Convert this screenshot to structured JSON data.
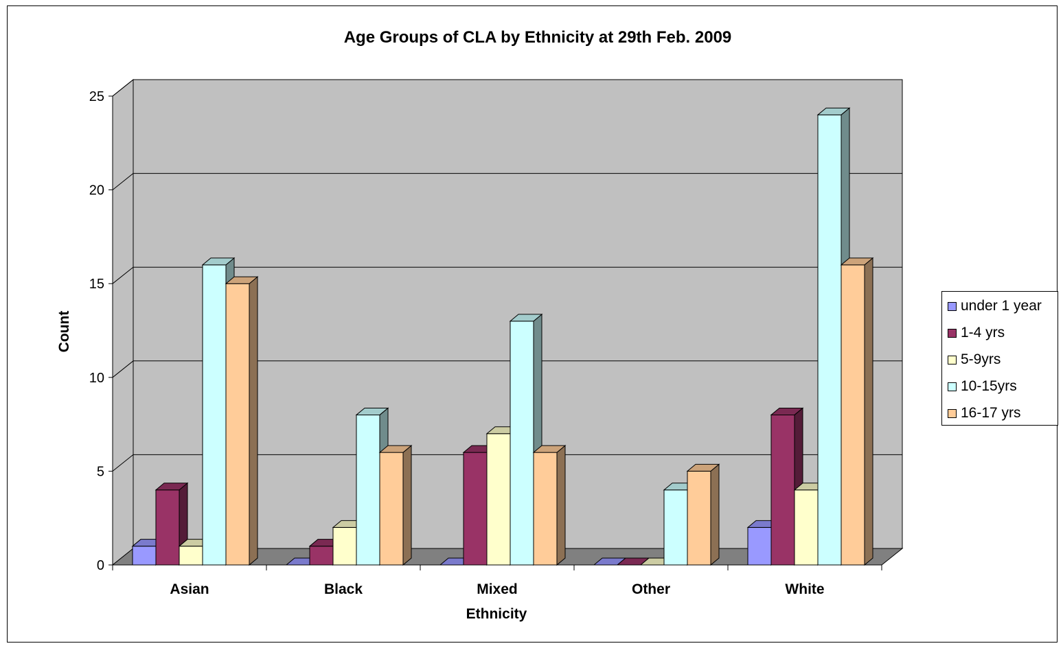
{
  "chart_data": {
    "type": "bar",
    "title": "Age Groups of CLA by Ethnicity at 29th Feb. 2009",
    "xlabel": "Ethnicity",
    "ylabel": "Count",
    "categories": [
      "Asian",
      "Black",
      "Mixed",
      "Other",
      "White"
    ],
    "ylim": [
      0,
      25
    ],
    "yticks": [
      0,
      5,
      10,
      15,
      20,
      25
    ],
    "grid": true,
    "three_d": true,
    "legend_position": "right",
    "series": [
      {
        "name": "under 1 year",
        "color": "#9999FF",
        "values": [
          1,
          0,
          0,
          0,
          2
        ]
      },
      {
        "name": "1-4 yrs",
        "color": "#993366",
        "values": [
          4,
          1,
          6,
          0,
          8
        ]
      },
      {
        "name": "5-9yrs",
        "color": "#FFFFCC",
        "values": [
          1,
          2,
          7,
          0,
          4
        ]
      },
      {
        "name": "10-15yrs",
        "color": "#CCFFFF",
        "values": [
          16,
          8,
          13,
          4,
          24
        ]
      },
      {
        "name": "16-17 yrs",
        "color": "#FFCC99",
        "values": [
          15,
          6,
          6,
          5,
          16
        ]
      }
    ]
  }
}
